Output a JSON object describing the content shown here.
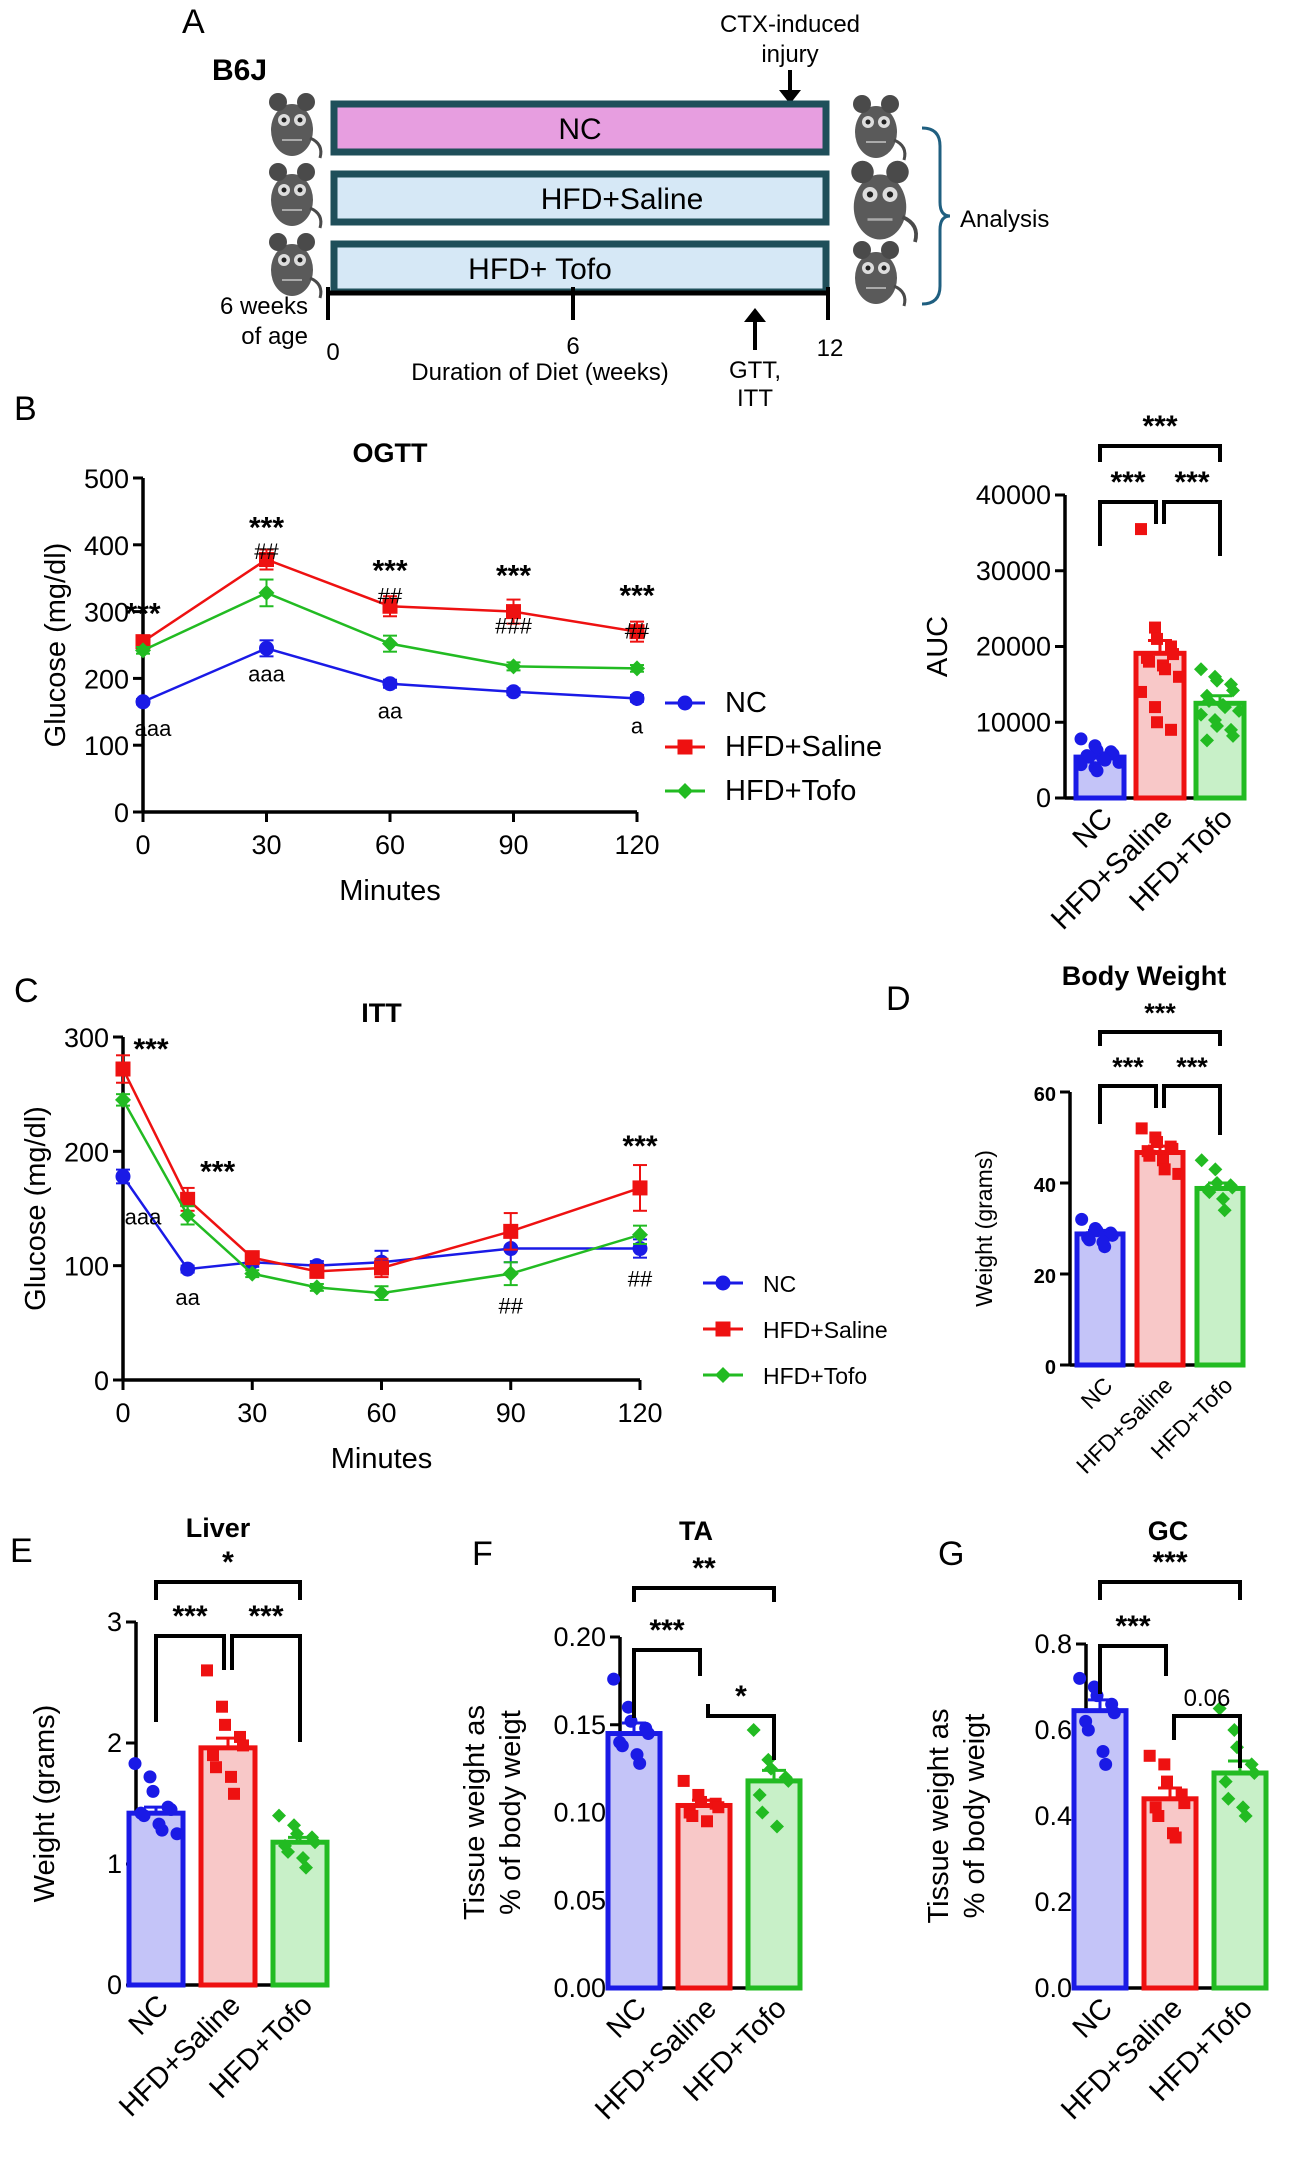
{
  "colors": {
    "nc": "#1a1ae6",
    "saline": "#ee1111",
    "tofo": "#22bb22",
    "nc_bar": "#c4c4f8",
    "saline_bar": "#f8c8c8",
    "tofo_bar": "#c8f0c8",
    "nc_box": "#e79ee0",
    "hfd_box": "#d6e8f6",
    "box_border": "#1f4f5a",
    "bracket": "#1f5f80",
    "mouse": "#555555"
  },
  "panel_a": {
    "letter": "A",
    "strain": "B6J",
    "injury_label_1": "CTX-induced",
    "injury_label_2": "injury",
    "groups": [
      "NC",
      "HFD+Saline",
      "HFD+ Tofo"
    ],
    "analysis": "Analysis",
    "age_1": "6 weeks",
    "age_2": "of age",
    "timeline_ticks": [
      "0",
      "6",
      "12"
    ],
    "duration_label": "Duration of Diet (weeks)",
    "test_label_1": "GTT,",
    "test_label_2": "ITT",
    "icons": [
      "mouse-icon",
      "arrow-icon",
      "brace-icon"
    ]
  },
  "chart_data": [
    {
      "panel": "B",
      "type": "line",
      "title": "OGTT",
      "xlabel": "Minutes",
      "ylabel": "Glucose (mg/dl)",
      "x": [
        0,
        30,
        60,
        90,
        120
      ],
      "xlim": [
        0,
        120
      ],
      "ylim": [
        0,
        500
      ],
      "xticks": [
        "0",
        "30",
        "60",
        "90",
        "120"
      ],
      "yticks": [
        "0",
        "100",
        "200",
        "300",
        "400",
        "500"
      ],
      "series": [
        {
          "name": "NC",
          "values": [
            165,
            245,
            192,
            180,
            170
          ],
          "err": [
            4,
            12,
            6,
            5,
            5
          ]
        },
        {
          "name": "HFD+Saline",
          "values": [
            255,
            378,
            308,
            300,
            270
          ],
          "err": [
            6,
            15,
            15,
            18,
            15
          ]
        },
        {
          "name": "HFD+Tofo",
          "values": [
            242,
            328,
            252,
            218,
            215
          ],
          "err": [
            5,
            20,
            12,
            6,
            5
          ]
        }
      ],
      "star_marks": [
        "***",
        "***",
        "***",
        "***",
        "***"
      ],
      "hash_marks": [
        "##",
        "##",
        "###",
        "##"
      ],
      "a_marks": [
        "aaa",
        "aaa",
        "aa",
        "a"
      ],
      "legend": [
        "NC",
        "HFD+Saline",
        "HFD+Tofo"
      ]
    },
    {
      "panel": "B-AUC",
      "type": "bar",
      "ylabel": "AUC",
      "categories": [
        "NC",
        "HFD+Saline",
        "HFD+Tofo"
      ],
      "values": [
        5400,
        19100,
        12500
      ],
      "err": [
        550,
        1700,
        1000
      ],
      "ylim": [
        0,
        40000
      ],
      "yticks": [
        "0",
        "10000",
        "20000",
        "30000",
        "40000"
      ],
      "points": [
        [
          7800,
          6900,
          6300,
          6100,
          5800,
          5600,
          5400,
          5200,
          5000,
          4700,
          4400,
          4000,
          3600
        ],
        [
          35500,
          22500,
          21000,
          20000,
          19000,
          18500,
          18000,
          17500,
          17000,
          16000,
          14000,
          12000,
          10000,
          9000
        ],
        [
          17000,
          16000,
          15500,
          15000,
          14200,
          13500,
          12800,
          12300,
          12000,
          11500,
          11000,
          10300,
          9500,
          9000,
          8200,
          7600
        ]
      ],
      "significance": [
        "***",
        "***",
        "***"
      ]
    },
    {
      "panel": "C",
      "type": "line",
      "title": "ITT",
      "xlabel": "Minutes",
      "ylabel": "Glucose (mg/dl)",
      "x": [
        0,
        15,
        30,
        45,
        60,
        90,
        120
      ],
      "xlim": [
        0,
        120
      ],
      "ylim": [
        0,
        300
      ],
      "xticks": [
        "0",
        "30",
        "60",
        "90",
        "120"
      ],
      "yticks": [
        "0",
        "100",
        "200",
        "300"
      ],
      "series": [
        {
          "name": "NC",
          "values": [
            178,
            97,
            103,
            100,
            103,
            115,
            115
          ],
          "err": [
            6,
            3,
            4,
            4,
            10,
            12,
            8
          ]
        },
        {
          "name": "HFD+Saline",
          "values": [
            272,
            158,
            107,
            95,
            98,
            130,
            168
          ],
          "err": [
            12,
            10,
            4,
            5,
            8,
            16,
            20
          ]
        },
        {
          "name": "HFD+Tofo",
          "values": [
            245,
            144,
            93,
            81,
            76,
            93,
            127
          ],
          "err": [
            5,
            8,
            3,
            3,
            6,
            10,
            8
          ]
        }
      ],
      "star_marks": [
        "***",
        "***",
        "***"
      ],
      "hash_marks": [
        "##",
        "##"
      ],
      "a_marks": [
        "aaa",
        "aa"
      ],
      "legend": [
        "NC",
        "HFD+Saline",
        "HFD+Tofo"
      ]
    },
    {
      "panel": "D",
      "type": "bar",
      "title": "Body Weight",
      "ylabel": "Weight (grams)",
      "categories": [
        "NC",
        "HFD+Saline",
        "HFD+Tofo"
      ],
      "values": [
        28.8,
        46.7,
        38.8
      ],
      "err": [
        0.8,
        1.4,
        1.2
      ],
      "ylim": [
        0,
        60
      ],
      "yticks": [
        "0",
        "20",
        "40",
        "60"
      ],
      "points": [
        [
          32,
          30,
          29.5,
          29,
          28.5,
          28,
          27.5,
          27,
          26
        ],
        [
          52,
          50,
          49,
          48,
          47.5,
          47,
          46,
          45,
          43,
          42
        ],
        [
          45,
          43,
          40,
          39.5,
          39,
          38.5,
          38,
          36.5,
          34
        ]
      ],
      "significance": [
        "***",
        "***",
        "***"
      ]
    },
    {
      "panel": "E",
      "type": "bar",
      "title": "Liver",
      "ylabel": "Weight (grams)",
      "categories": [
        "NC",
        "HFD+Saline",
        "HFD+Tofo"
      ],
      "values": [
        1.42,
        1.96,
        1.18
      ],
      "err": [
        0.05,
        0.08,
        0.04
      ],
      "ylim": [
        0,
        3
      ],
      "yticks": [
        "0",
        "1",
        "2",
        "3"
      ],
      "points": [
        [
          1.83,
          1.72,
          1.6,
          1.47,
          1.45,
          1.42,
          1.4,
          1.33,
          1.28,
          1.25
        ],
        [
          2.6,
          2.3,
          2.15,
          2.05,
          1.98,
          1.9,
          1.8,
          1.72,
          1.58
        ],
        [
          1.4,
          1.32,
          1.25,
          1.22,
          1.18,
          1.15,
          1.1,
          1.05,
          0.97
        ]
      ],
      "significance": [
        "*",
        "***",
        "***"
      ]
    },
    {
      "panel": "F",
      "type": "bar",
      "title": "TA",
      "ylabel": "Tissue weight as",
      "ylabel2": "% of body weigt",
      "categories": [
        "NC",
        "HFD+Saline",
        "HFD+Tofo"
      ],
      "values": [
        0.145,
        0.104,
        0.118
      ],
      "err": [
        0.006,
        0.003,
        0.006
      ],
      "ylim": [
        0,
        0.2
      ],
      "yticks": [
        "0.00",
        "0.05",
        "0.10",
        "0.15",
        "0.20"
      ],
      "points": [
        [
          0.176,
          0.16,
          0.152,
          0.148,
          0.145,
          0.14,
          0.138,
          0.133,
          0.128
        ],
        [
          0.118,
          0.11,
          0.106,
          0.105,
          0.103,
          0.1,
          0.098,
          0.095
        ],
        [
          0.147,
          0.13,
          0.125,
          0.12,
          0.118,
          0.11,
          0.1,
          0.092
        ]
      ],
      "significance": [
        "**",
        "***",
        "*"
      ]
    },
    {
      "panel": "G",
      "type": "bar",
      "title": "GC",
      "ylabel": "Tissue weight as",
      "ylabel2": "% of body weigt",
      "categories": [
        "NC",
        "HFD+Saline",
        "HFD+Tofo"
      ],
      "values": [
        0.645,
        0.44,
        0.5
      ],
      "err": [
        0.025,
        0.025,
        0.028
      ],
      "ylim": [
        0,
        0.8
      ],
      "yticks": [
        "0.0",
        "0.2",
        "0.4",
        "0.6",
        "0.8"
      ],
      "points": [
        [
          0.72,
          0.7,
          0.68,
          0.66,
          0.64,
          0.62,
          0.6,
          0.55,
          0.52
        ],
        [
          0.54,
          0.52,
          0.48,
          0.45,
          0.43,
          0.42,
          0.4,
          0.36,
          0.35
        ],
        [
          0.65,
          0.6,
          0.56,
          0.52,
          0.5,
          0.48,
          0.44,
          0.42,
          0.4
        ]
      ],
      "significance": [
        "***",
        "***",
        "0.06"
      ]
    }
  ]
}
